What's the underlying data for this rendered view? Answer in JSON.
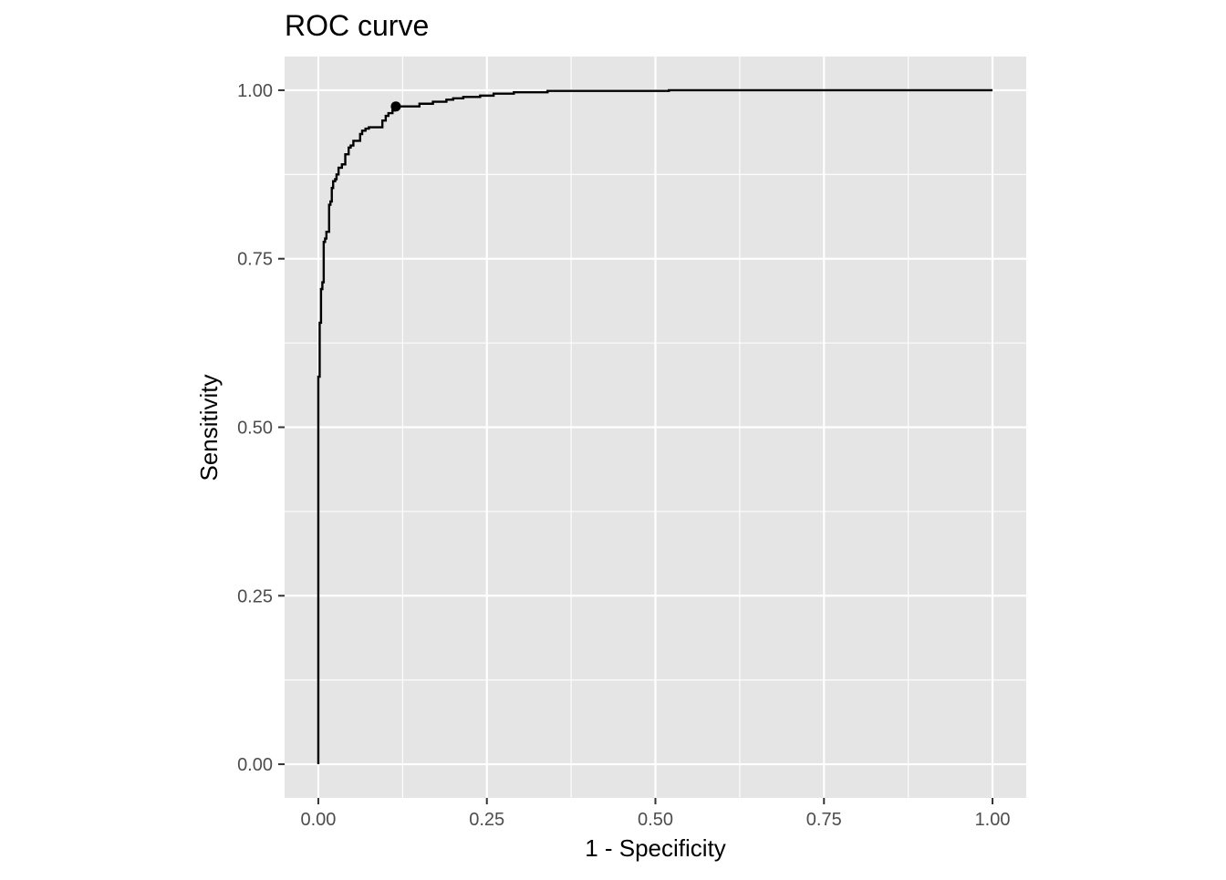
{
  "chart_data": {
    "type": "line",
    "title": "ROC curve",
    "xlabel": "1 - Specificity",
    "ylabel": "Sensitivity",
    "xlim": [
      -0.05,
      1.05
    ],
    "ylim": [
      -0.05,
      1.05
    ],
    "x_ticks": [
      0.0,
      0.25,
      0.5,
      0.75,
      1.0
    ],
    "x_tick_labels": [
      "0.00",
      "0.25",
      "0.50",
      "0.75",
      "1.00"
    ],
    "y_ticks": [
      0.0,
      0.25,
      0.5,
      0.75,
      1.0
    ],
    "y_tick_labels": [
      "0.00",
      "0.25",
      "0.50",
      "0.75",
      "1.00"
    ],
    "grid": true,
    "legend": "none",
    "colors": {
      "panel_background": "#e5e5e5",
      "grid": "#ffffff",
      "line": "#000000",
      "tick": "#333333"
    },
    "series": [
      {
        "x": [
          0.0,
          0.0,
          0.002,
          0.002,
          0.004,
          0.004,
          0.006,
          0.006,
          0.008,
          0.008,
          0.01,
          0.01,
          0.012,
          0.012,
          0.016,
          0.016,
          0.018,
          0.018,
          0.02,
          0.02,
          0.022,
          0.022,
          0.025,
          0.025,
          0.027,
          0.027,
          0.03,
          0.03,
          0.035,
          0.035,
          0.04,
          0.04,
          0.045,
          0.045,
          0.048,
          0.048,
          0.052,
          0.052,
          0.062,
          0.062,
          0.065,
          0.065,
          0.07,
          0.07,
          0.075,
          0.075,
          0.095,
          0.095,
          0.1,
          0.1,
          0.104,
          0.104,
          0.11,
          0.11,
          0.113,
          0.113,
          0.12,
          0.12,
          0.15,
          0.15,
          0.17,
          0.17,
          0.19,
          0.19,
          0.2,
          0.2,
          0.215,
          0.215,
          0.24,
          0.24,
          0.26,
          0.26,
          0.29,
          0.29,
          0.34,
          0.34,
          0.52,
          0.52,
          1.0
        ],
        "y": [
          0.0,
          0.575,
          0.575,
          0.655,
          0.655,
          0.705,
          0.705,
          0.715,
          0.715,
          0.775,
          0.775,
          0.78,
          0.78,
          0.79,
          0.79,
          0.83,
          0.83,
          0.835,
          0.835,
          0.855,
          0.855,
          0.865,
          0.865,
          0.868,
          0.868,
          0.875,
          0.875,
          0.885,
          0.885,
          0.89,
          0.89,
          0.905,
          0.905,
          0.915,
          0.915,
          0.918,
          0.918,
          0.925,
          0.925,
          0.935,
          0.935,
          0.94,
          0.94,
          0.943,
          0.943,
          0.945,
          0.945,
          0.955,
          0.955,
          0.962,
          0.962,
          0.966,
          0.966,
          0.97,
          0.97,
          0.974,
          0.974,
          0.976,
          0.976,
          0.98,
          0.98,
          0.983,
          0.983,
          0.986,
          0.986,
          0.988,
          0.988,
          0.99,
          0.99,
          0.992,
          0.992,
          0.995,
          0.995,
          0.997,
          0.997,
          0.999,
          0.999,
          1.0,
          1.0
        ]
      }
    ],
    "points": [
      {
        "x": 0.115,
        "y": 0.976
      }
    ]
  }
}
